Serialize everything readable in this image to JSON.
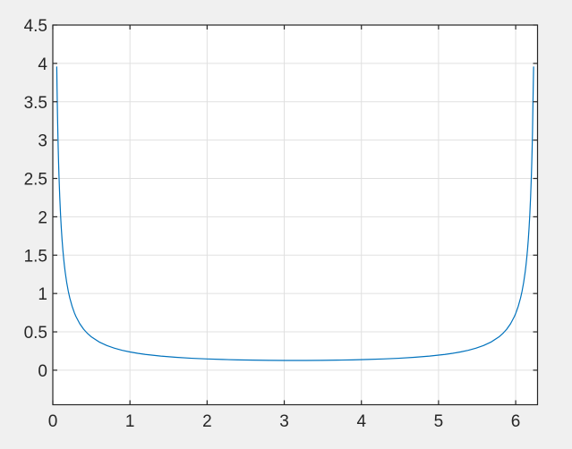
{
  "figure": {
    "background_color": "#F0F0F0",
    "axes_background": "#FFFFFF",
    "axes_border_color": "#262626",
    "grid_color": "#E0E0E0",
    "tick_color": "#262626",
    "tick_label_color": "#262626"
  },
  "chart_data": {
    "type": "line",
    "title": "",
    "xlabel": "",
    "ylabel": "",
    "xlim": [
      0,
      6.2832
    ],
    "ylim": [
      -0.45,
      4.5
    ],
    "x_ticks": [
      0,
      1,
      2,
      3,
      4,
      5,
      6
    ],
    "x_tick_labels": [
      "0",
      "1",
      "2",
      "3",
      "4",
      "5",
      "6"
    ],
    "y_ticks": [
      0,
      0.5,
      1,
      1.5,
      2,
      2.5,
      3,
      3.5,
      4,
      4.5
    ],
    "y_tick_labels": [
      "0",
      "0.5",
      "1",
      "1.5",
      "2",
      "2.5",
      "3",
      "3.5",
      "4",
      "4.5"
    ],
    "grid": true,
    "legend_position": "none",
    "series": [
      {
        "name": "line1",
        "color": "#0072BD",
        "points": [
          [
            0.051,
            3.9537
          ],
          [
            0.055,
            3.6685
          ],
          [
            0.06,
            3.3655
          ],
          [
            0.065,
            3.1091
          ],
          [
            0.07,
            2.8893
          ],
          [
            0.075,
            2.6989
          ],
          [
            0.08,
            2.5322
          ],
          [
            0.09,
            2.2545
          ],
          [
            0.1,
            2.0323
          ],
          [
            0.11,
            1.8506
          ],
          [
            0.12,
            1.6991
          ],
          [
            0.13,
            1.571
          ],
          [
            0.14,
            1.4611
          ],
          [
            0.15,
            1.3659
          ],
          [
            0.16,
            1.2827
          ],
          [
            0.18,
            1.1439
          ],
          [
            0.2,
            1.0329
          ],
          [
            0.22,
            0.9421
          ],
          [
            0.25,
            0.8332
          ],
          [
            0.28,
            0.7476
          ],
          [
            0.3,
            0.7001
          ],
          [
            0.35,
            0.6051
          ],
          [
            0.4,
            0.534
          ],
          [
            0.45,
            0.4787
          ],
          [
            0.5,
            0.4346
          ],
          [
            0.6,
            0.3685
          ],
          [
            0.7,
            0.3215
          ],
          [
            0.8,
            0.2865
          ],
          [
            0.9,
            0.2594
          ],
          [
            1.0,
            0.2379
          ],
          [
            1.1,
            0.2204
          ],
          [
            1.2,
            0.206
          ],
          [
            1.4,
            0.1838
          ],
          [
            1.6,
            0.1677
          ],
          [
            1.8,
            0.1557
          ],
          [
            2.0,
            0.1467
          ],
          [
            2.2,
            0.1399
          ],
          [
            2.4,
            0.1348
          ],
          [
            2.6,
            0.1312
          ],
          [
            2.8,
            0.1288
          ],
          [
            3.0,
            0.1276
          ],
          [
            3.1416,
            0.1273
          ],
          [
            3.2832,
            0.1276
          ],
          [
            3.4832,
            0.1288
          ],
          [
            3.6832,
            0.1312
          ],
          [
            3.8832,
            0.1348
          ],
          [
            4.0832,
            0.1399
          ],
          [
            4.2832,
            0.1467
          ],
          [
            4.4832,
            0.1557
          ],
          [
            4.6832,
            0.1677
          ],
          [
            4.8832,
            0.1838
          ],
          [
            5.0832,
            0.206
          ],
          [
            5.1832,
            0.2204
          ],
          [
            5.2832,
            0.2379
          ],
          [
            5.3832,
            0.2594
          ],
          [
            5.4832,
            0.2865
          ],
          [
            5.5832,
            0.3215
          ],
          [
            5.6832,
            0.3685
          ],
          [
            5.7832,
            0.4346
          ],
          [
            5.8332,
            0.4787
          ],
          [
            5.8832,
            0.534
          ],
          [
            5.9332,
            0.6051
          ],
          [
            5.9832,
            0.7001
          ],
          [
            6.0032,
            0.7476
          ],
          [
            6.0332,
            0.8332
          ],
          [
            6.0632,
            0.9421
          ],
          [
            6.0832,
            1.0329
          ],
          [
            6.1032,
            1.1439
          ],
          [
            6.1232,
            1.2827
          ],
          [
            6.1332,
            1.3659
          ],
          [
            6.1432,
            1.4611
          ],
          [
            6.1532,
            1.571
          ],
          [
            6.1632,
            1.6991
          ],
          [
            6.1732,
            1.8506
          ],
          [
            6.1832,
            2.0323
          ],
          [
            6.1932,
            2.2545
          ],
          [
            6.2032,
            2.5322
          ],
          [
            6.2082,
            2.6989
          ],
          [
            6.2132,
            2.8893
          ],
          [
            6.2182,
            3.1091
          ],
          [
            6.2222,
            3.3655
          ],
          [
            6.2272,
            3.6685
          ],
          [
            6.2322,
            3.9537
          ]
        ]
      }
    ]
  }
}
